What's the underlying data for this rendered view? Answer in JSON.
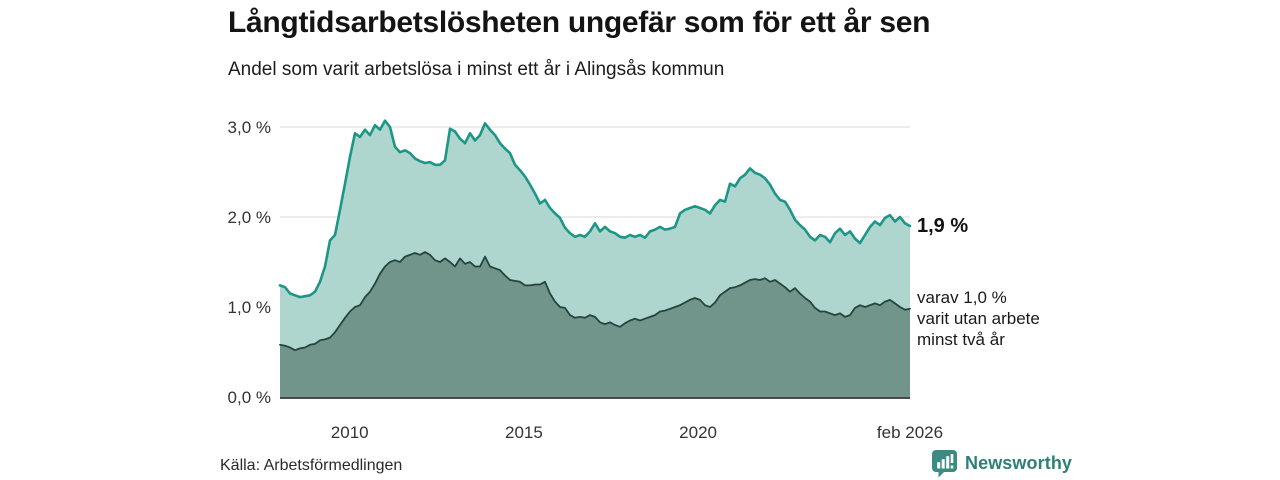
{
  "header": {
    "title": "Långtidsarbetslösheten ungefär som för ett år sen",
    "subtitle": "Andel som varit arbetslösa i minst ett år i Alingsås kommun"
  },
  "annotations": {
    "end_value_label": "1,9 %",
    "secondary_line1": "varav 1,0 %",
    "secondary_line2": "varit utan arbete",
    "secondary_line3": "minst två år"
  },
  "footer": {
    "source": "Källa: Arbetsförmedlingen",
    "brand": "Newsworthy"
  },
  "colors": {
    "title_text": "#141414",
    "axis_text": "#333333",
    "gridline": "#d9d9d9",
    "axis_line": "#4a4a4a",
    "brand_teal": "#2e8077",
    "brand_icon": "#3a8c82"
  },
  "chart_data": {
    "type": "area",
    "title": "Långtidsarbetslösheten ungefär som för ett år sen",
    "subtitle": "Andel som varit arbetslösa i minst ett år i Alingsås kommun",
    "unit": "%",
    "x_range": [
      2008.0,
      2026.083
    ],
    "ylim": [
      0,
      3.3
    ],
    "grid": true,
    "legend": "inline-right-labels",
    "y_ticks": [
      {
        "label": "0,0 %",
        "value": 0
      },
      {
        "label": "1,0 %",
        "value": 1
      },
      {
        "label": "2,0 %",
        "value": 2
      },
      {
        "label": "3,0 %",
        "value": 3
      }
    ],
    "x_ticks": [
      {
        "label": "2010",
        "value": 2010
      },
      {
        "label": "2015",
        "value": 2015
      },
      {
        "label": "2020",
        "value": 2020
      },
      {
        "label": "feb 2026",
        "value": 2026.083
      }
    ],
    "series": [
      {
        "key": "total",
        "name": "Andel som varit arbetslösa i minst ett år",
        "end_label": "1,9 %",
        "last_value": 1.9,
        "line_color": "#1d9688",
        "fill_color": "#aed6ce",
        "values": [
          1.24,
          1.22,
          1.15,
          1.13,
          1.11,
          1.12,
          1.13,
          1.17,
          1.28,
          1.45,
          1.74,
          1.8,
          2.08,
          2.37,
          2.67,
          2.93,
          2.89,
          2.97,
          2.91,
          3.02,
          2.97,
          3.07,
          3.0,
          2.78,
          2.72,
          2.74,
          2.71,
          2.65,
          2.62,
          2.6,
          2.61,
          2.58,
          2.58,
          2.63,
          2.98,
          2.95,
          2.87,
          2.82,
          2.93,
          2.85,
          2.91,
          3.04,
          2.97,
          2.91,
          2.82,
          2.76,
          2.71,
          2.58,
          2.52,
          2.45,
          2.36,
          2.26,
          2.15,
          2.19,
          2.1,
          2.04,
          1.99,
          1.88,
          1.82,
          1.78,
          1.8,
          1.78,
          1.84,
          1.93,
          1.84,
          1.89,
          1.84,
          1.82,
          1.78,
          1.77,
          1.8,
          1.78,
          1.8,
          1.77,
          1.84,
          1.86,
          1.89,
          1.86,
          1.87,
          1.89,
          2.04,
          2.08,
          2.1,
          2.12,
          2.1,
          2.08,
          2.04,
          2.13,
          2.19,
          2.17,
          2.37,
          2.34,
          2.43,
          2.47,
          2.54,
          2.49,
          2.47,
          2.43,
          2.36,
          2.26,
          2.19,
          2.17,
          2.08,
          1.97,
          1.91,
          1.86,
          1.78,
          1.74,
          1.8,
          1.78,
          1.72,
          1.82,
          1.87,
          1.8,
          1.84,
          1.76,
          1.71,
          1.8,
          1.89,
          1.95,
          1.91,
          1.99,
          2.02,
          1.95,
          2.0,
          1.93,
          1.9
        ]
      },
      {
        "key": "two_plus_years",
        "name": "varav utan arbete minst två år",
        "end_label": "1,0 %",
        "last_value": 1.0,
        "line_color": "#25443e",
        "fill_color": "#71948b",
        "values": [
          0.58,
          0.57,
          0.55,
          0.52,
          0.54,
          0.55,
          0.58,
          0.59,
          0.63,
          0.64,
          0.66,
          0.72,
          0.8,
          0.88,
          0.95,
          1.0,
          1.02,
          1.11,
          1.17,
          1.26,
          1.37,
          1.45,
          1.5,
          1.52,
          1.5,
          1.56,
          1.58,
          1.6,
          1.58,
          1.61,
          1.58,
          1.52,
          1.5,
          1.54,
          1.5,
          1.45,
          1.54,
          1.48,
          1.5,
          1.45,
          1.45,
          1.56,
          1.45,
          1.43,
          1.41,
          1.35,
          1.3,
          1.29,
          1.28,
          1.24,
          1.24,
          1.25,
          1.25,
          1.28,
          1.15,
          1.06,
          1.0,
          0.99,
          0.91,
          0.88,
          0.89,
          0.88,
          0.91,
          0.89,
          0.83,
          0.81,
          0.83,
          0.8,
          0.78,
          0.82,
          0.85,
          0.87,
          0.85,
          0.87,
          0.89,
          0.91,
          0.95,
          0.96,
          0.98,
          1.0,
          1.02,
          1.05,
          1.08,
          1.1,
          1.08,
          1.02,
          1.0,
          1.05,
          1.13,
          1.17,
          1.21,
          1.22,
          1.24,
          1.27,
          1.3,
          1.31,
          1.3,
          1.32,
          1.28,
          1.3,
          1.26,
          1.22,
          1.17,
          1.21,
          1.15,
          1.1,
          1.06,
          0.99,
          0.95,
          0.95,
          0.93,
          0.91,
          0.93,
          0.89,
          0.91,
          0.99,
          1.02,
          1.0,
          1.02,
          1.04,
          1.02,
          1.06,
          1.08,
          1.04,
          1.0,
          0.97,
          0.98
        ]
      }
    ]
  }
}
